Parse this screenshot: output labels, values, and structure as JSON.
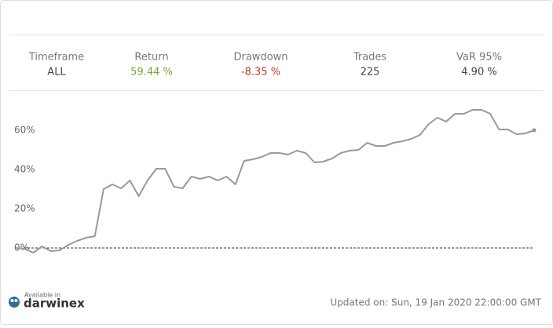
{
  "stats": [
    {
      "label": "Timeframe",
      "value": "ALL",
      "color": "#444444"
    },
    {
      "label": "Return",
      "value": "59.44 %",
      "color": "#7aa33a"
    },
    {
      "label": "Drawdown",
      "value": "-8.35 %",
      "color": "#c0392b"
    },
    {
      "label": "Trades",
      "value": "225",
      "color": "#444444"
    },
    {
      "label": "VaR 95%",
      "value": "4.90 %",
      "color": "#444444"
    }
  ],
  "chart_data": {
    "type": "line",
    "color": "#999999",
    "values": [
      0,
      -0.4,
      -2.4,
      0.8,
      -1.6,
      -1.2,
      1.6,
      3.6,
      5.2,
      6,
      30,
      32.4,
      30.4,
      34.4,
      26.4,
      34.4,
      40.4,
      40.4,
      31.2,
      30.4,
      36.4,
      35.2,
      36.4,
      34.4,
      36.4,
      32.4,
      44.4,
      45.2,
      46.4,
      48.4,
      48.4,
      47.6,
      49.6,
      48.4,
      43.6,
      44,
      45.6,
      48.4,
      49.6,
      50,
      53.6,
      52,
      52,
      53.6,
      54.4,
      55.6,
      57.6,
      63.2,
      66.4,
      64.4,
      68.4,
      68.4,
      70.4,
      70.4,
      68.4,
      60.4,
      60.4,
      58,
      58.4,
      60
    ],
    "ylim": [
      -10,
      74
    ],
    "yticks": [
      {
        "value": 0,
        "label": "0%"
      },
      {
        "value": 20,
        "label": "20%"
      },
      {
        "value": 40,
        "label": "40%"
      },
      {
        "value": 60,
        "label": "60%"
      }
    ],
    "zero_line": true
  },
  "footer": {
    "available": "Available in",
    "brand": "darwinex",
    "updated": "Updated on: Sun, 19 Jan 2020 22:00:00 GMT"
  }
}
